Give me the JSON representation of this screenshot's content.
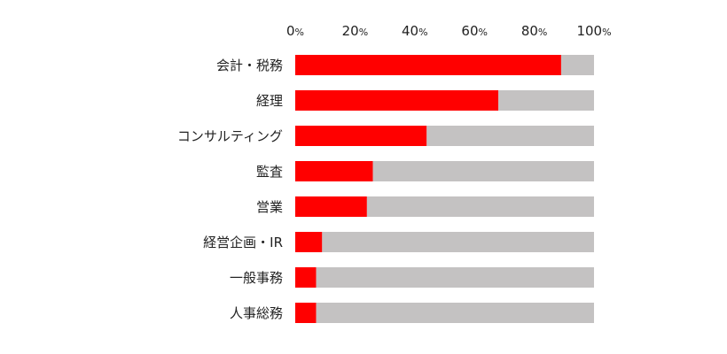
{
  "chart_data": {
    "type": "bar",
    "orientation": "horizontal",
    "stacked": true,
    "percent_scale": true,
    "title": "",
    "xlabel": "",
    "ylabel": "",
    "xlim": [
      0,
      100
    ],
    "ticks": [
      {
        "value": 0,
        "num": "0",
        "unit": "%"
      },
      {
        "value": 20,
        "num": "20",
        "unit": "%"
      },
      {
        "value": 40,
        "num": "40",
        "unit": "%"
      },
      {
        "value": 60,
        "num": "60",
        "unit": "%"
      },
      {
        "value": 80,
        "num": "80",
        "unit": "%"
      },
      {
        "value": 100,
        "num": "100",
        "unit": "%"
      }
    ],
    "categories": [
      "会計・税務",
      "経理",
      "コンサルティング",
      "監査",
      "営業",
      "経営企画・IR",
      "一般事務",
      "人事総務"
    ],
    "series": [
      {
        "values": [
          89,
          68,
          44,
          26,
          24,
          9,
          7,
          7
        ],
        "color": "#ff0000"
      },
      {
        "values": [
          11,
          32,
          56,
          74,
          76,
          91,
          93,
          93
        ],
        "color": "#c4c2c2"
      }
    ],
    "grid": false,
    "legend": "none"
  }
}
